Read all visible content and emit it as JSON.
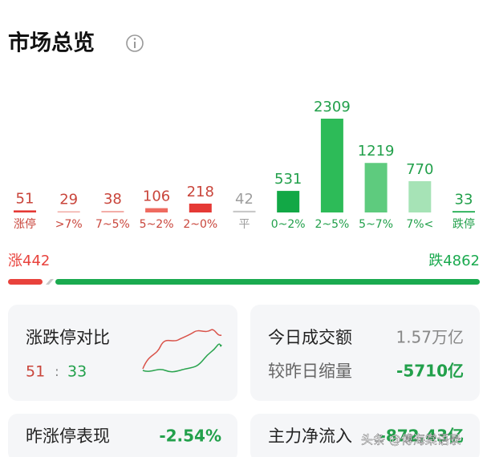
{
  "header": {
    "title": "市场总览"
  },
  "chart_data": {
    "type": "bar",
    "categories": [
      "涨停",
      ">7%",
      "7~5%",
      "5~2%",
      "2~0%",
      "平",
      "0~2%",
      "2~5%",
      "5~7%",
      "7%<",
      "跌停"
    ],
    "values": [
      51,
      29,
      38,
      106,
      218,
      42,
      531,
      2309,
      1219,
      770,
      33
    ],
    "colors": [
      "#e53935",
      "#f2aaa4",
      "#f2aaa4",
      "#ef6b60",
      "#e53935",
      "#c8c8c8",
      "#12a846",
      "#2dbb58",
      "#5ecb7e",
      "#a6e3b6",
      "#12a846"
    ],
    "label_colors": [
      "#c9453b",
      "#c9453b",
      "#c9453b",
      "#c9453b",
      "#c9453b",
      "#9e9e9e",
      "#22a04b",
      "#22a04b",
      "#22a04b",
      "#22a04b",
      "#22a04b"
    ]
  },
  "breadth": {
    "up_label": "涨",
    "up_count": 442,
    "down_label": "跌",
    "down_count": 4862,
    "up_color": "#e8423c",
    "down_color": "#1aaa4f"
  },
  "cards": [
    {
      "title": "涨跌停对比",
      "up": 51,
      "separator": ":",
      "down": 33
    },
    {
      "rows": [
        {
          "label": "今日成交额",
          "value": "1.57万亿"
        },
        {
          "label": "较昨日缩量",
          "value": "-5710亿"
        }
      ]
    },
    {
      "rows": [
        {
          "label": "昨涨停表现",
          "value": "-2.54%"
        }
      ]
    },
    {
      "rows": [
        {
          "label": "主力净流入",
          "value": "-872.43亿"
        }
      ]
    }
  ],
  "watermark": "头条 @傅海棠语录"
}
